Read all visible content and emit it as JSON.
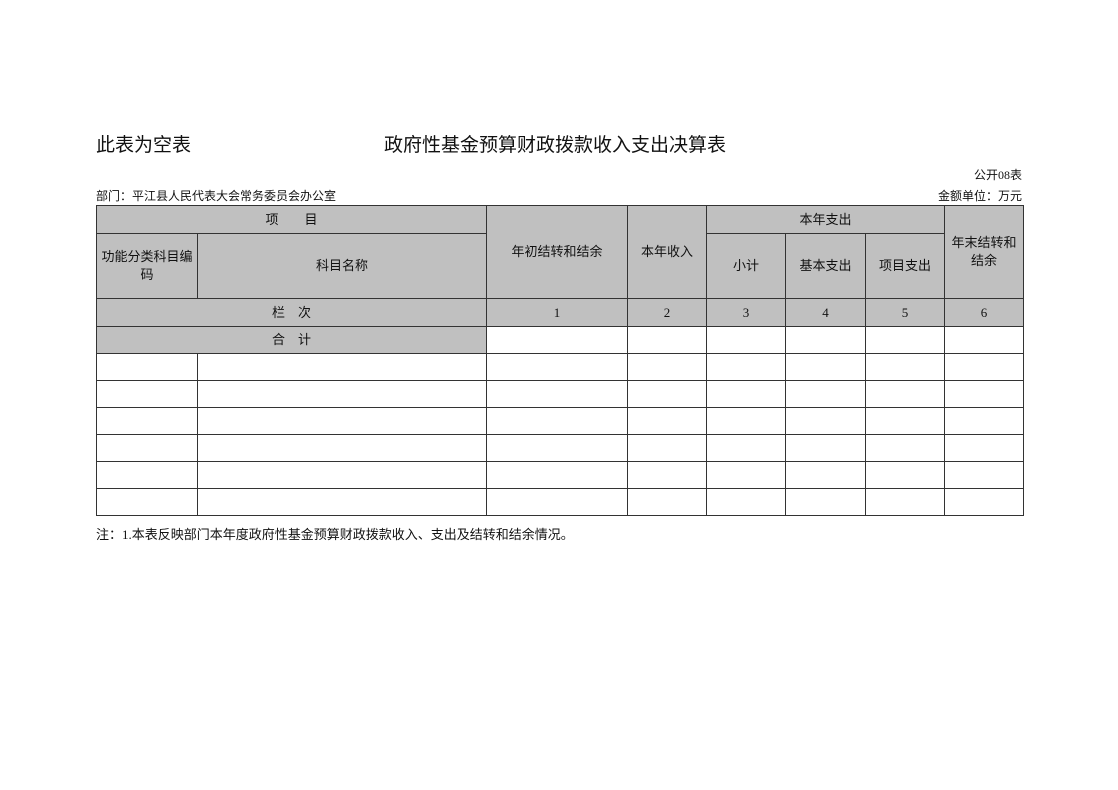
{
  "header": {
    "empty_note": "此表为空表",
    "title": "政府性基金预算财政拨款收入支出决算表",
    "table_code": "公开08表",
    "department": "部门：平江县人民代表大会常务委员会办公室",
    "unit": "金额单位：万元"
  },
  "table": {
    "item_header": "项　　目",
    "code_header": "功能分类科目编码",
    "name_header": "科目名称",
    "opening_balance": "年初结转和结余",
    "current_income": "本年收入",
    "current_expense": "本年支出",
    "subtotal": "小计",
    "basic_expense": "基本支出",
    "project_expense": "项目支出",
    "closing_balance": "年末结转和结余",
    "column_index_label": "栏　次",
    "column_numbers": [
      "1",
      "2",
      "3",
      "4",
      "5",
      "6"
    ],
    "total_label": "合　计",
    "rows": [
      [],
      [],
      [],
      [],
      [],
      []
    ]
  },
  "footer": {
    "note": "注：1.本表反映部门本年度政府性基金预算财政拨款收入、支出及结转和结余情况。"
  },
  "colors": {
    "header_fill": "#c0c0c0",
    "border": "#333333"
  }
}
